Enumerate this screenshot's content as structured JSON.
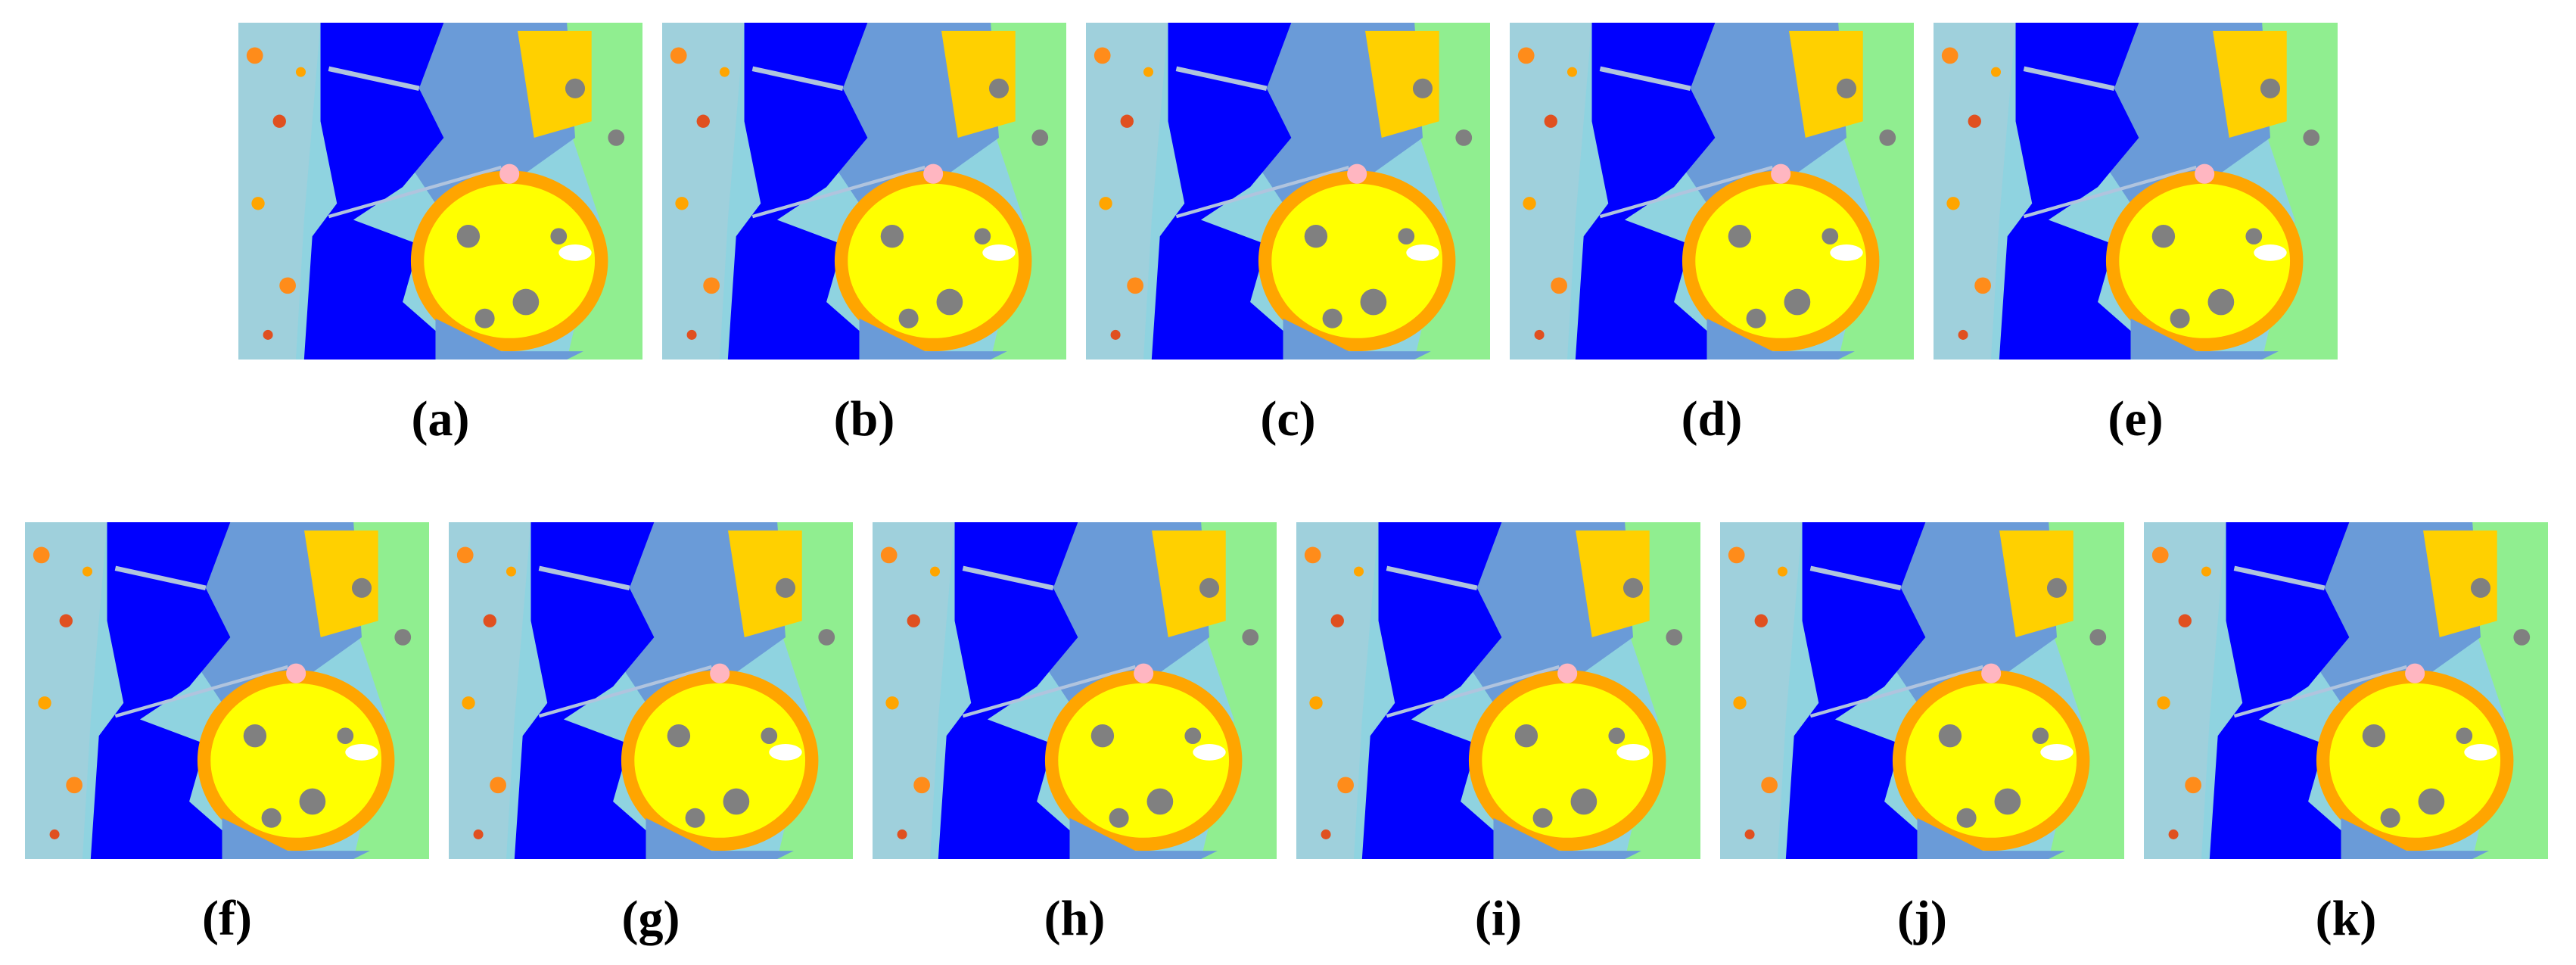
{
  "panels": [
    {
      "label": "(a)"
    },
    {
      "label": "(b)"
    },
    {
      "label": "(c)"
    },
    {
      "label": "(d)"
    },
    {
      "label": "(e)"
    },
    {
      "label": "(f)"
    },
    {
      "label": "(g)"
    },
    {
      "label": "(h)"
    },
    {
      "label": "(i)"
    },
    {
      "label": "(j)"
    },
    {
      "label": "(k)"
    }
  ]
}
